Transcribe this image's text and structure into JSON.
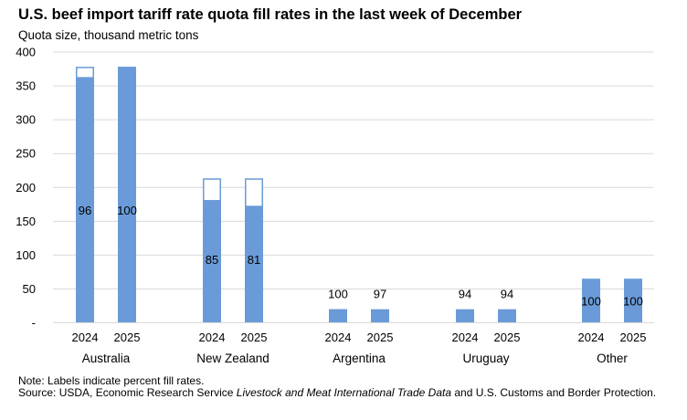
{
  "title": "U.S. beef import tariff rate quota fill rates in the last week of December",
  "subtitle": "Quota size, thousand metric tons",
  "note": "Note: Labels indicate percent fill rates.",
  "source_prefix": "Source: USDA, Economic Research Service ",
  "source_italic": "Livestock and Meat International Trade Data",
  "source_suffix": " and U.S. Customs and Border Protection.",
  "chart_data": {
    "type": "bar",
    "ylim": [
      0,
      400
    ],
    "yticks": [
      {
        "value": 0,
        "label": "-"
      },
      {
        "value": 50,
        "label": "50"
      },
      {
        "value": 100,
        "label": "100"
      },
      {
        "value": 150,
        "label": "150"
      },
      {
        "value": 200,
        "label": "200"
      },
      {
        "value": 250,
        "label": "250"
      },
      {
        "value": 300,
        "label": "300"
      },
      {
        "value": 350,
        "label": "350"
      },
      {
        "value": 400,
        "label": "400"
      }
    ],
    "grid": true,
    "fill_color": "#6a9bd8",
    "groups": [
      {
        "name": "Australia",
        "bars": [
          {
            "year": "2024",
            "quota": 378.2,
            "fill_rate": 96,
            "label": "96"
          },
          {
            "year": "2025",
            "quota": 378.2,
            "fill_rate": 100,
            "label": "100"
          }
        ]
      },
      {
        "name": "New Zealand",
        "bars": [
          {
            "year": "2024",
            "quota": 213.4,
            "fill_rate": 85,
            "label": "85"
          },
          {
            "year": "2025",
            "quota": 213.4,
            "fill_rate": 81,
            "label": "81"
          }
        ]
      },
      {
        "name": "Argentina",
        "bars": [
          {
            "year": "2024",
            "quota": 20,
            "fill_rate": 100,
            "label": "100"
          },
          {
            "year": "2025",
            "quota": 20,
            "fill_rate": 97,
            "label": "97"
          }
        ]
      },
      {
        "name": "Uruguay",
        "bars": [
          {
            "year": "2024",
            "quota": 20,
            "fill_rate": 94,
            "label": "94"
          },
          {
            "year": "2025",
            "quota": 20,
            "fill_rate": 94,
            "label": "94"
          }
        ]
      },
      {
        "name": "Other",
        "bars": [
          {
            "year": "2024",
            "quota": 65,
            "fill_rate": 100,
            "label": "100"
          },
          {
            "year": "2025",
            "quota": 65,
            "fill_rate": 100,
            "label": "100"
          }
        ]
      }
    ]
  }
}
